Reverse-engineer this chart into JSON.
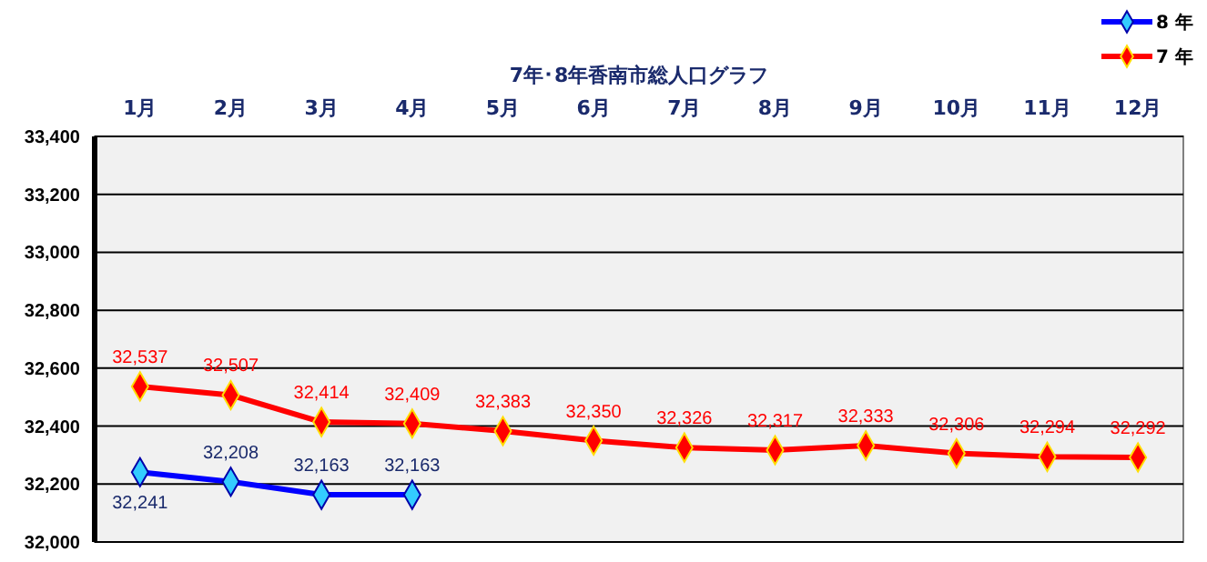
{
  "chart_data": {
    "type": "line",
    "title": "7年･8年香南市総人口グラフ",
    "categories": [
      "1月",
      "2月",
      "3月",
      "4月",
      "5月",
      "6月",
      "7月",
      "8月",
      "9月",
      "10月",
      "11月",
      "12月"
    ],
    "series": [
      {
        "name": "8 年",
        "color": "#0000ff",
        "values": [
          32241,
          32208,
          32163,
          32163,
          null,
          null,
          null,
          null,
          null,
          null,
          null,
          null
        ],
        "value_labels": [
          "32,241",
          "32,208",
          "32,163",
          "32,163",
          null,
          null,
          null,
          null,
          null,
          null,
          null,
          null
        ]
      },
      {
        "name": "7 年",
        "color": "#ff0000",
        "values": [
          32537,
          32507,
          32414,
          32409,
          32383,
          32350,
          32326,
          32317,
          32333,
          32306,
          32294,
          32292
        ],
        "value_labels": [
          "32,537",
          "32,507",
          "32,414",
          "32,409",
          "32,383",
          "32,350",
          "32,326",
          "32,317",
          "32,333",
          "32,306",
          "32,294",
          "32,292"
        ]
      }
    ],
    "ylim": [
      32000,
      33400
    ],
    "yticks": [
      {
        "value": 32000,
        "label": "32,000"
      },
      {
        "value": 32200,
        "label": "32,200"
      },
      {
        "value": 32400,
        "label": "32,400"
      },
      {
        "value": 32600,
        "label": "32,600"
      },
      {
        "value": 32800,
        "label": "32,800"
      },
      {
        "value": 33000,
        "label": "33,000"
      },
      {
        "value": 33200,
        "label": "33,200"
      },
      {
        "value": 33400,
        "label": "33,400"
      }
    ],
    "grid": "y",
    "legend": "top right",
    "marker": "diamond",
    "line_style": "solid"
  }
}
